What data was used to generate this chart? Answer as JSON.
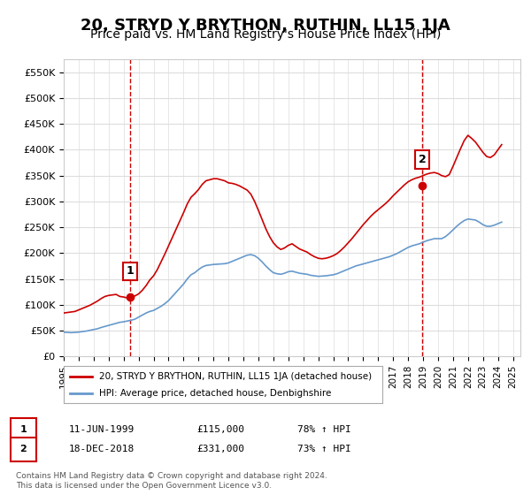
{
  "title": "20, STRYD Y BRYTHON, RUTHIN, LL15 1JA",
  "subtitle": "Price paid vs. HM Land Registry's House Price Index (HPI)",
  "title_fontsize": 13,
  "subtitle_fontsize": 10,
  "ylim": [
    0,
    575000
  ],
  "xlim_start": 1995.0,
  "xlim_end": 2025.5,
  "yticks": [
    0,
    50000,
    100000,
    150000,
    200000,
    250000,
    300000,
    350000,
    400000,
    450000,
    500000,
    550000
  ],
  "ytick_labels": [
    "£0",
    "£50K",
    "£100K",
    "£150K",
    "£200K",
    "£250K",
    "£300K",
    "£350K",
    "£400K",
    "£450K",
    "£500K",
    "£550K"
  ],
  "xticks": [
    1995,
    1996,
    1997,
    1998,
    1999,
    2000,
    2001,
    2002,
    2003,
    2004,
    2005,
    2006,
    2007,
    2008,
    2009,
    2010,
    2011,
    2012,
    2013,
    2014,
    2015,
    2016,
    2017,
    2018,
    2019,
    2020,
    2021,
    2022,
    2023,
    2024,
    2025
  ],
  "red_line_color": "#cc0000",
  "blue_line_color": "#6699cc",
  "vline_color": "#cc0000",
  "point1_x": 1999.44,
  "point1_y": 115000,
  "point1_label": "1",
  "point2_x": 2018.96,
  "point2_y": 331000,
  "point2_label": "2",
  "legend_entries": [
    "20, STRYD Y BRYTHON, RUTHIN, LL15 1JA (detached house)",
    "HPI: Average price, detached house, Denbighshire"
  ],
  "footer_line1": "Contains HM Land Registry data © Crown copyright and database right 2024.",
  "footer_line2": "This data is licensed under the Open Government Licence v3.0.",
  "table_row1": [
    "1",
    "11-JUN-1999",
    "£115,000",
    "78% ↑ HPI"
  ],
  "table_row2": [
    "2",
    "18-DEC-2018",
    "£331,000",
    "73% ↑ HPI"
  ],
  "bg_color": "#ffffff",
  "grid_color": "#dddddd",
  "hpi_data_x": [
    1995.0,
    1995.25,
    1995.5,
    1995.75,
    1996.0,
    1996.25,
    1996.5,
    1996.75,
    1997.0,
    1997.25,
    1997.5,
    1997.75,
    1998.0,
    1998.25,
    1998.5,
    1998.75,
    1999.0,
    1999.25,
    1999.5,
    1999.75,
    2000.0,
    2000.25,
    2000.5,
    2000.75,
    2001.0,
    2001.25,
    2001.5,
    2001.75,
    2002.0,
    2002.25,
    2002.5,
    2002.75,
    2003.0,
    2003.25,
    2003.5,
    2003.75,
    2004.0,
    2004.25,
    2004.5,
    2004.75,
    2005.0,
    2005.25,
    2005.5,
    2005.75,
    2006.0,
    2006.25,
    2006.5,
    2006.75,
    2007.0,
    2007.25,
    2007.5,
    2007.75,
    2008.0,
    2008.25,
    2008.5,
    2008.75,
    2009.0,
    2009.25,
    2009.5,
    2009.75,
    2010.0,
    2010.25,
    2010.5,
    2010.75,
    2011.0,
    2011.25,
    2011.5,
    2011.75,
    2012.0,
    2012.25,
    2012.5,
    2012.75,
    2013.0,
    2013.25,
    2013.5,
    2013.75,
    2014.0,
    2014.25,
    2014.5,
    2014.75,
    2015.0,
    2015.25,
    2015.5,
    2015.75,
    2016.0,
    2016.25,
    2016.5,
    2016.75,
    2017.0,
    2017.25,
    2017.5,
    2017.75,
    2018.0,
    2018.25,
    2018.5,
    2018.75,
    2019.0,
    2019.25,
    2019.5,
    2019.75,
    2020.0,
    2020.25,
    2020.5,
    2020.75,
    2021.0,
    2021.25,
    2021.5,
    2021.75,
    2022.0,
    2022.25,
    2022.5,
    2022.75,
    2023.0,
    2023.25,
    2023.5,
    2023.75,
    2024.0,
    2024.25
  ],
  "hpi_data_y": [
    47000,
    46500,
    46000,
    46500,
    47000,
    48000,
    49000,
    50500,
    52000,
    53500,
    56000,
    58000,
    60000,
    62000,
    64000,
    66000,
    67000,
    68500,
    70000,
    72000,
    76000,
    80000,
    84000,
    87000,
    89000,
    93000,
    97000,
    102000,
    108000,
    116000,
    124000,
    132000,
    140000,
    150000,
    158000,
    162000,
    168000,
    173000,
    176000,
    177000,
    178000,
    178500,
    179000,
    179500,
    181000,
    184000,
    187000,
    190000,
    193000,
    196000,
    197000,
    195000,
    190000,
    183000,
    175000,
    168000,
    162000,
    160000,
    159000,
    161000,
    164000,
    165000,
    163000,
    161000,
    160000,
    159000,
    157000,
    156000,
    155000,
    155500,
    156000,
    157000,
    158000,
    160000,
    163000,
    166000,
    169000,
    172000,
    175000,
    177000,
    179000,
    181000,
    183000,
    185000,
    187000,
    189000,
    191000,
    193000,
    196000,
    199000,
    203000,
    207000,
    211000,
    214000,
    216000,
    218000,
    221000,
    224000,
    226000,
    228000,
    228000,
    228000,
    232000,
    238000,
    245000,
    252000,
    258000,
    263000,
    266000,
    265000,
    264000,
    260000,
    255000,
    252000,
    252000,
    254000,
    257000,
    260000
  ],
  "red_data_x": [
    1995.0,
    1995.25,
    1995.5,
    1995.75,
    1996.0,
    1996.25,
    1996.5,
    1996.75,
    1997.0,
    1997.25,
    1997.5,
    1997.75,
    1998.0,
    1998.25,
    1998.5,
    1998.75,
    1999.0,
    1999.25,
    1999.5,
    1999.75,
    2000.0,
    2000.25,
    2000.5,
    2000.75,
    2001.0,
    2001.25,
    2001.5,
    2001.75,
    2002.0,
    2002.25,
    2002.5,
    2002.75,
    2003.0,
    2003.25,
    2003.5,
    2003.75,
    2004.0,
    2004.25,
    2004.5,
    2004.75,
    2005.0,
    2005.25,
    2005.5,
    2005.75,
    2006.0,
    2006.25,
    2006.5,
    2006.75,
    2007.0,
    2007.25,
    2007.5,
    2007.75,
    2008.0,
    2008.25,
    2008.5,
    2008.75,
    2009.0,
    2009.25,
    2009.5,
    2009.75,
    2010.0,
    2010.25,
    2010.5,
    2010.75,
    2011.0,
    2011.25,
    2011.5,
    2011.75,
    2012.0,
    2012.25,
    2012.5,
    2012.75,
    2013.0,
    2013.25,
    2013.5,
    2013.75,
    2014.0,
    2014.25,
    2014.5,
    2014.75,
    2015.0,
    2015.25,
    2015.5,
    2015.75,
    2016.0,
    2016.25,
    2016.5,
    2016.75,
    2017.0,
    2017.25,
    2017.5,
    2017.75,
    2018.0,
    2018.25,
    2018.5,
    2018.75,
    2019.0,
    2019.25,
    2019.5,
    2019.75,
    2020.0,
    2020.25,
    2020.5,
    2020.75,
    2021.0,
    2021.25,
    2021.5,
    2021.75,
    2022.0,
    2022.25,
    2022.5,
    2022.75,
    2023.0,
    2023.25,
    2023.5,
    2023.75,
    2024.0,
    2024.25
  ],
  "red_data_y": [
    84000,
    85000,
    86000,
    87000,
    90000,
    93000,
    96000,
    99000,
    103000,
    107000,
    112000,
    116000,
    118000,
    119000,
    120000,
    116000,
    115000,
    113000,
    115000,
    117000,
    121000,
    128000,
    137000,
    148000,
    156000,
    168000,
    183000,
    198000,
    214000,
    230000,
    246000,
    262000,
    278000,
    295000,
    308000,
    315000,
    323000,
    333000,
    340000,
    342000,
    344000,
    344000,
    342000,
    340000,
    336000,
    335000,
    333000,
    330000,
    326000,
    322000,
    314000,
    300000,
    283000,
    265000,
    247000,
    232000,
    220000,
    212000,
    207000,
    210000,
    215000,
    218000,
    213000,
    208000,
    205000,
    202000,
    197000,
    193000,
    190000,
    189000,
    190000,
    192000,
    195000,
    199000,
    205000,
    212000,
    220000,
    228000,
    237000,
    246000,
    255000,
    263000,
    271000,
    278000,
    284000,
    290000,
    296000,
    303000,
    311000,
    318000,
    325000,
    332000,
    338000,
    342000,
    345000,
    347000,
    350000,
    353000,
    355000,
    356000,
    354000,
    350000,
    348000,
    352000,
    368000,
    385000,
    402000,
    418000,
    428000,
    422000,
    415000,
    405000,
    395000,
    387000,
    385000,
    390000,
    400000,
    410000
  ]
}
